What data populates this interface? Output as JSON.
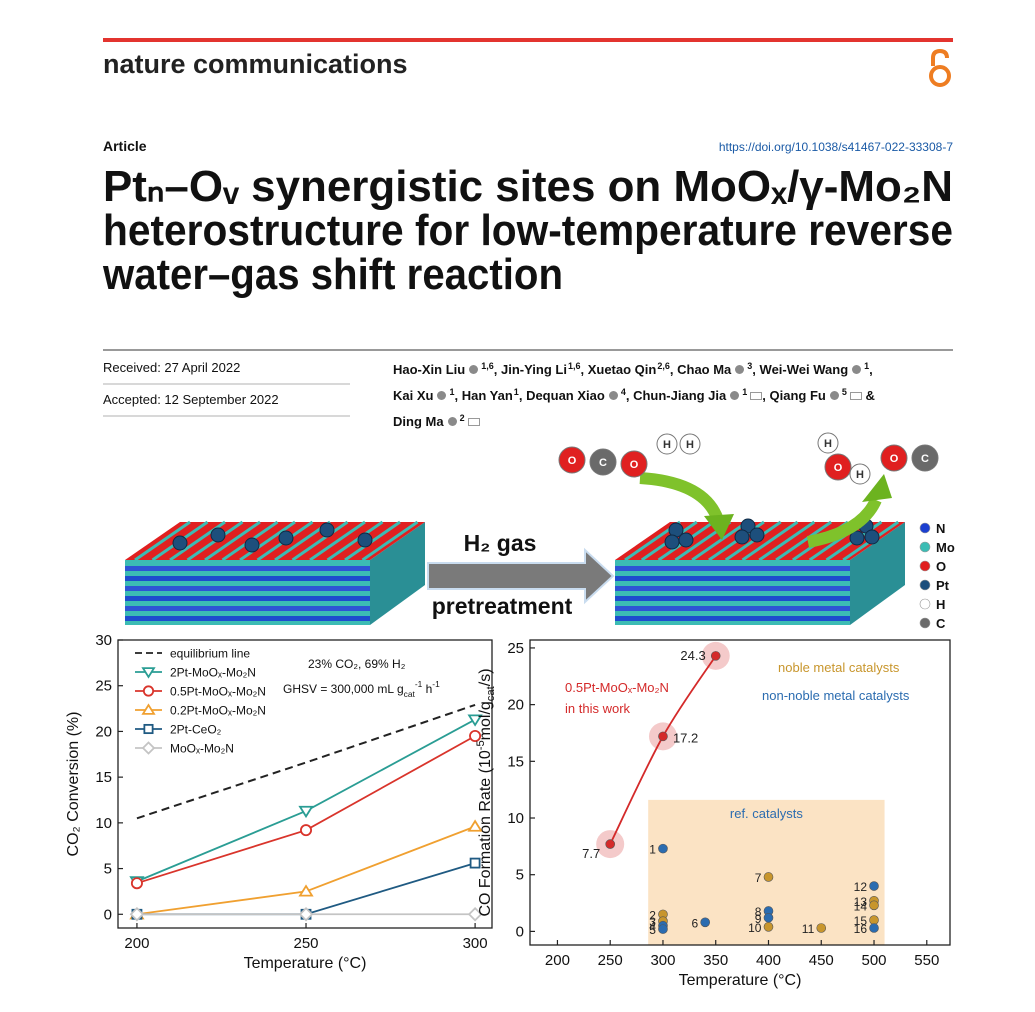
{
  "paper": {
    "journal": "nature communications",
    "article_type": "Article",
    "doi": "https://doi.org/10.1038/s41467-022-33308-7",
    "title": [
      "Ptₙ–Oᵥ synergistic sites on MoOₓ/γ-Mo₂N",
      "heterostructure for low-temperature reverse",
      "water–gas shift reaction"
    ],
    "received": "Received: 27 April 2022",
    "accepted": "Accepted: 12 September 2022",
    "authors": [
      {
        "name": "Hao-Xin Liu",
        "orcid": true,
        "affiliation": "1,6",
        "separator": ","
      },
      {
        "name": "Jin-Ying Li",
        "orcid": false,
        "affiliation": "1,6",
        "separator": ","
      },
      {
        "name": "Xuetao Qin",
        "orcid": false,
        "affiliation": "2,6",
        "separator": ","
      },
      {
        "name": "Chao Ma",
        "orcid": true,
        "affiliation": "3",
        "separator": ","
      },
      {
        "name": "Wei-Wei Wang",
        "orcid": true,
        "affiliation": "1",
        "separator": ","
      },
      {
        "name": "Kai Xu",
        "orcid": true,
        "affiliation": "1",
        "separator": ","
      },
      {
        "name": "Han Yan",
        "orcid": false,
        "affiliation": "1",
        "separator": ","
      },
      {
        "name": "Dequan Xiao",
        "orcid": true,
        "affiliation": "4",
        "separator": ","
      },
      {
        "name": "Chun-Jiang Jia",
        "orcid": true,
        "affiliation": "1",
        "corresponding": true,
        "separator": ","
      },
      {
        "name": "Qiang Fu",
        "orcid": true,
        "affiliation": "5",
        "corresponding": true,
        "separator": "&"
      },
      {
        "name": "Ding Ma",
        "orcid": true,
        "affiliation": "2",
        "corresponding": true
      }
    ]
  },
  "graphical_abstract": {
    "step": [
      "H₂ gas",
      "pretreatment"
    ],
    "reactants": [
      [
        "O",
        "C",
        "O"
      ],
      [
        "H",
        "H"
      ]
    ],
    "products": [
      [
        "H",
        "O",
        "H"
      ],
      [
        "O",
        "C"
      ]
    ],
    "legend": [
      {
        "label": "N",
        "color": "#1b3fd0"
      },
      {
        "label": "Mo",
        "color": "#3cbcb4"
      },
      {
        "label": "O",
        "color": "#e02020"
      },
      {
        "label": "Pt",
        "color": "#1d4f7c"
      },
      {
        "label": "H",
        "color": "#ffffff"
      },
      {
        "label": "C",
        "color": "#6a6a6a"
      }
    ]
  },
  "chart_data": [
    {
      "type": "line",
      "x": [
        200,
        250,
        300
      ],
      "xlim": [
        194.4,
        305
      ],
      "ylim": [
        -1.5,
        30
      ],
      "xticks": [
        200,
        250,
        300
      ],
      "yticks": [
        0,
        5,
        10,
        15,
        20,
        25,
        30
      ],
      "xlabel": "Temperature (°C)",
      "ylabel": "CO₂ Conversion (%)",
      "legend": "upper left",
      "annotations": [
        "23% CO₂, 69% H₂",
        [
          "GHSV = 300,000 mL g",
          "cat",
          "-1",
          " h",
          "-1"
        ]
      ],
      "series": [
        {
          "name": "equilibrium line",
          "color": "#222222",
          "dash": true,
          "values": [
            10.5,
            16.6,
            22.9
          ]
        },
        {
          "name": "2Pt-MoOₓ-Mo₂N",
          "color": "#2a9d94",
          "marker": "triangle-down",
          "values": [
            3.6,
            11.3,
            21.3
          ]
        },
        {
          "name": "0.5Pt-MoOₓ-Mo₂N",
          "color": "#d9342b",
          "marker": "circle",
          "values": [
            3.4,
            9.2,
            19.5
          ]
        },
        {
          "name": "0.2Pt-MoOₓ-Mo₂N",
          "color": "#f0a030",
          "marker": "triangle-up",
          "values": [
            0,
            2.5,
            9.6
          ]
        },
        {
          "name": "2Pt-CeO₂",
          "color": "#1f5a82",
          "marker": "square",
          "values": [
            0,
            0,
            5.6
          ]
        },
        {
          "name": "MoOₓ-Mo₂N",
          "color": "#c4c4c4",
          "marker": "diamond",
          "values": [
            0,
            0,
            0
          ]
        }
      ]
    },
    {
      "type": "scatter",
      "xlim": [
        174,
        572
      ],
      "ylim": [
        -1.2,
        25.7
      ],
      "xticks": [
        200,
        250,
        300,
        350,
        400,
        450,
        500,
        550
      ],
      "yticks": [
        0,
        5,
        10,
        15,
        20,
        25
      ],
      "xlabel": "Temperature (°C)",
      "ylabel": [
        "CO Formation Rate (10",
        "-5",
        "mol/g",
        "cat",
        "/s)"
      ],
      "region": {
        "label": "ref. catalysts",
        "x": [
          286,
          510
        ],
        "y": [
          -1.2,
          11.6
        ],
        "color": "#fbe3c4"
      },
      "series": [
        {
          "name": "0.5Pt-MoOₓ-Mo₂N",
          "note": "in this work",
          "color": "#d42a2a",
          "smooth": true,
          "x": [
            250,
            300,
            350
          ],
          "values": [
            7.7,
            17.2,
            24.3
          ]
        },
        {
          "name": "noble metal catalysts",
          "color": "#c8962d",
          "line": false,
          "x": [
            300,
            300,
            400,
            400,
            450,
            500,
            500,
            500
          ],
          "values": [
            1.5,
            0.9,
            4.8,
            0.4,
            0.3,
            2.7,
            2.3,
            1.0
          ],
          "point_labels": [
            "2",
            "3",
            "7",
            "10",
            "11",
            "13",
            "14",
            "15"
          ]
        },
        {
          "name": "non-noble metal catalysts",
          "color": "#2b6cb0",
          "line": false,
          "x": [
            300,
            300,
            300,
            340,
            400,
            400,
            500,
            500
          ],
          "values": [
            7.3,
            0.5,
            0.2,
            0.8,
            1.8,
            1.2,
            4.0,
            0.3
          ],
          "point_labels": [
            "1",
            "4",
            "5",
            "6",
            "8",
            "9",
            "12",
            "16"
          ]
        }
      ]
    }
  ]
}
